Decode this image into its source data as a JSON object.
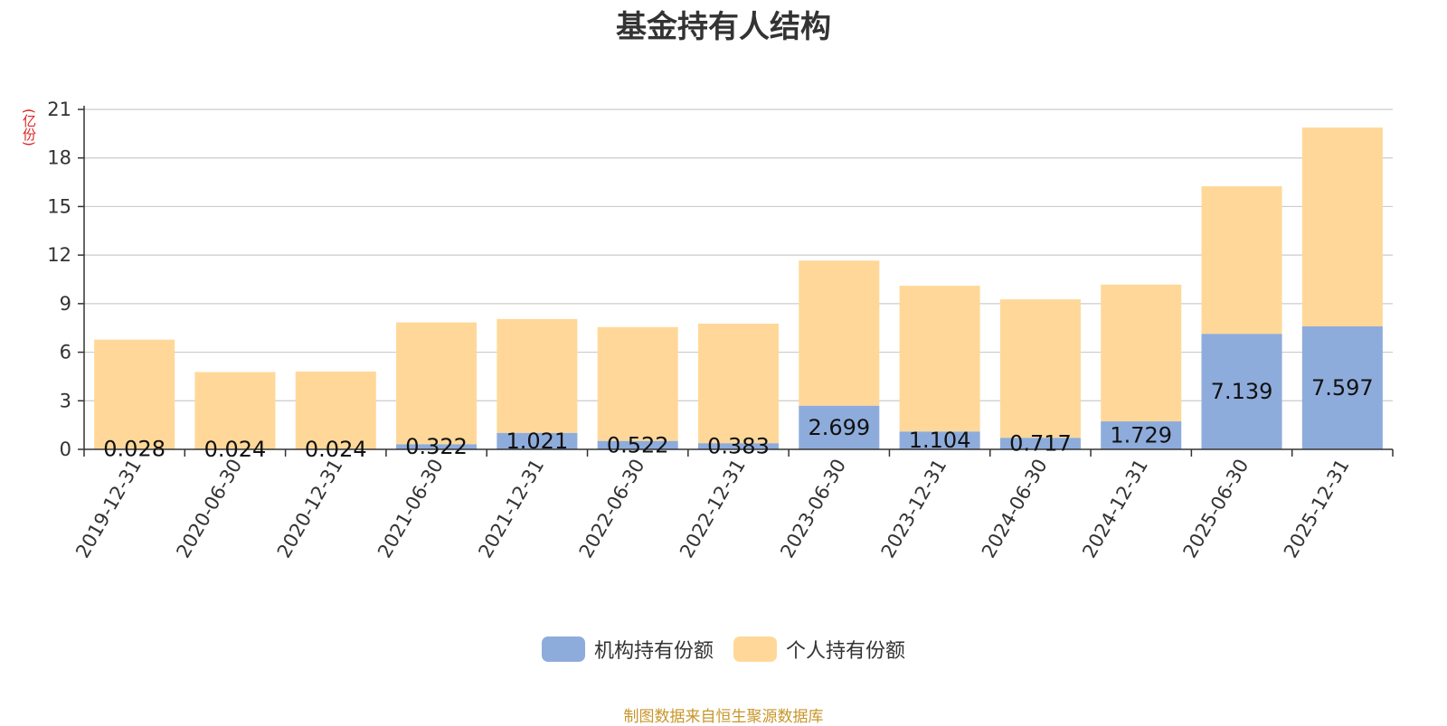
{
  "chart_data": {
    "type": "bar",
    "stacked": true,
    "title": "基金持有人结构",
    "unit": "(亿份)",
    "ylim": [
      0,
      21
    ],
    "yticks": [
      0,
      3,
      6,
      9,
      12,
      15,
      18,
      21
    ],
    "grid": true,
    "legend_position": "bottom",
    "categories": [
      "2019-12-31",
      "2020-06-30",
      "2020-12-31",
      "2021-06-30",
      "2021-12-31",
      "2022-06-30",
      "2022-12-31",
      "2023-06-30",
      "2023-12-31",
      "2024-06-30",
      "2024-12-31",
      "2025-06-30",
      "2025-12-31"
    ],
    "series": [
      {
        "name": "机构持有份额",
        "color": "#8eacdb",
        "values": [
          0.028,
          0.024,
          0.024,
          0.322,
          1.021,
          0.522,
          0.383,
          2.699,
          1.104,
          0.717,
          1.729,
          7.139,
          7.597
        ],
        "labels": [
          "0.028",
          "0.024",
          "0.024",
          "0.322",
          "1.021",
          "0.522",
          "0.383",
          "2.699",
          "1.104",
          "0.717",
          "1.729",
          "7.139",
          "7.597"
        ]
      },
      {
        "name": "个人持有份额",
        "color": "#ffd899",
        "values": [
          6.75,
          4.75,
          4.78,
          7.52,
          7.03,
          7.03,
          7.38,
          8.96,
          9.0,
          8.55,
          8.45,
          9.11,
          12.28
        ]
      }
    ]
  },
  "footer": {
    "source": "制图数据来自恒生聚源数据库"
  }
}
